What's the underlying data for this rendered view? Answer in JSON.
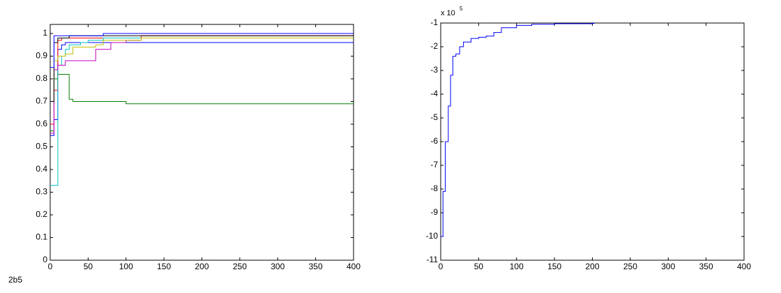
{
  "chart_data": [
    {
      "type": "line",
      "step": true,
      "x": [
        0,
        5,
        10,
        15,
        20,
        25,
        30,
        40,
        50,
        60,
        70,
        80,
        100,
        120,
        150,
        200,
        300,
        400
      ],
      "series": [
        {
          "color": "#0000ff",
          "values": [
            0.55,
            0.62,
            0.93,
            0.95,
            0.96,
            0.96,
            0.96,
            0.96,
            0.96,
            0.96,
            0.96,
            0.96,
            0.96,
            0.96,
            0.96,
            0.96,
            0.96,
            0.96
          ]
        },
        {
          "color": "#008000",
          "values": [
            0.57,
            0.8,
            0.82,
            0.82,
            0.82,
            0.71,
            0.7,
            0.7,
            0.7,
            0.7,
            0.7,
            0.7,
            0.69,
            0.69,
            0.69,
            0.69,
            0.69,
            0.69
          ]
        },
        {
          "color": "#ff0000",
          "values": [
            0.6,
            0.75,
            0.97,
            0.98,
            0.98,
            0.98,
            0.98,
            0.98,
            0.98,
            0.98,
            0.98,
            0.98,
            0.98,
            0.99,
            0.99,
            0.99,
            0.99,
            0.99
          ]
        },
        {
          "color": "#00bfbf",
          "values": [
            0.33,
            0.33,
            0.86,
            0.9,
            0.93,
            0.95,
            0.95,
            0.96,
            0.97,
            0.97,
            0.98,
            0.98,
            0.98,
            0.98,
            0.98,
            0.98,
            0.98,
            0.98
          ]
        },
        {
          "color": "#bf00bf",
          "values": [
            0.56,
            0.84,
            0.86,
            0.86,
            0.88,
            0.88,
            0.88,
            0.88,
            0.88,
            0.93,
            0.93,
            0.96,
            0.97,
            0.98,
            0.98,
            0.98,
            0.98,
            0.98
          ]
        },
        {
          "color": "#bfbf00",
          "values": [
            0.7,
            0.88,
            0.9,
            0.9,
            0.91,
            0.91,
            0.94,
            0.94,
            0.94,
            0.95,
            0.97,
            0.97,
            0.97,
            0.98,
            0.98,
            0.98,
            0.98,
            0.98
          ]
        },
        {
          "color": "#000000",
          "values": [
            0.7,
            0.96,
            0.98,
            0.98,
            0.98,
            0.99,
            0.99,
            0.99,
            0.99,
            0.99,
            0.99,
            0.99,
            0.99,
            0.99,
            0.99,
            0.99,
            0.99,
            0.99
          ]
        },
        {
          "color": "#0000ff",
          "values": [
            0.85,
            0.99,
            0.99,
            0.99,
            0.99,
            0.99,
            0.99,
            0.99,
            0.99,
            0.99,
            1.0,
            1.0,
            1.0,
            1.0,
            1.0,
            1.0,
            1.0,
            1.0
          ]
        }
      ],
      "xlim": [
        0,
        400
      ],
      "xticks": [
        0,
        50,
        100,
        150,
        200,
        250,
        300,
        350,
        400
      ],
      "ylim": [
        0,
        1.04
      ],
      "yticks": [
        0,
        0.1,
        0.2,
        0.3,
        0.4,
        0.5,
        0.6,
        0.7,
        0.8,
        0.9,
        1
      ]
    },
    {
      "type": "line",
      "step": true,
      "x": [
        0,
        3,
        6,
        10,
        13,
        16,
        20,
        25,
        30,
        40,
        50,
        60,
        70,
        80,
        100,
        120,
        150,
        200,
        203
      ],
      "series": [
        {
          "color": "#0000ff",
          "values": [
            -10,
            -8.1,
            -6,
            -4.5,
            -3.2,
            -2.4,
            -2.3,
            -2.0,
            -1.8,
            -1.65,
            -1.6,
            -1.55,
            -1.4,
            -1.2,
            -1.1,
            -1.05,
            -1.03,
            -1.02,
            -1.02
          ]
        }
      ],
      "y_scale_label": "x 10",
      "y_scale_exponent": 5,
      "xlim": [
        0,
        400
      ],
      "xticks": [
        0,
        50,
        100,
        150,
        200,
        250,
        300,
        350,
        400
      ],
      "ylim": [
        -11,
        -1
      ],
      "yticks": [
        -11,
        -10,
        -9,
        -8,
        -7,
        -6,
        -5,
        -4,
        -3,
        -2,
        -1
      ]
    }
  ],
  "figure_label": "2b5"
}
